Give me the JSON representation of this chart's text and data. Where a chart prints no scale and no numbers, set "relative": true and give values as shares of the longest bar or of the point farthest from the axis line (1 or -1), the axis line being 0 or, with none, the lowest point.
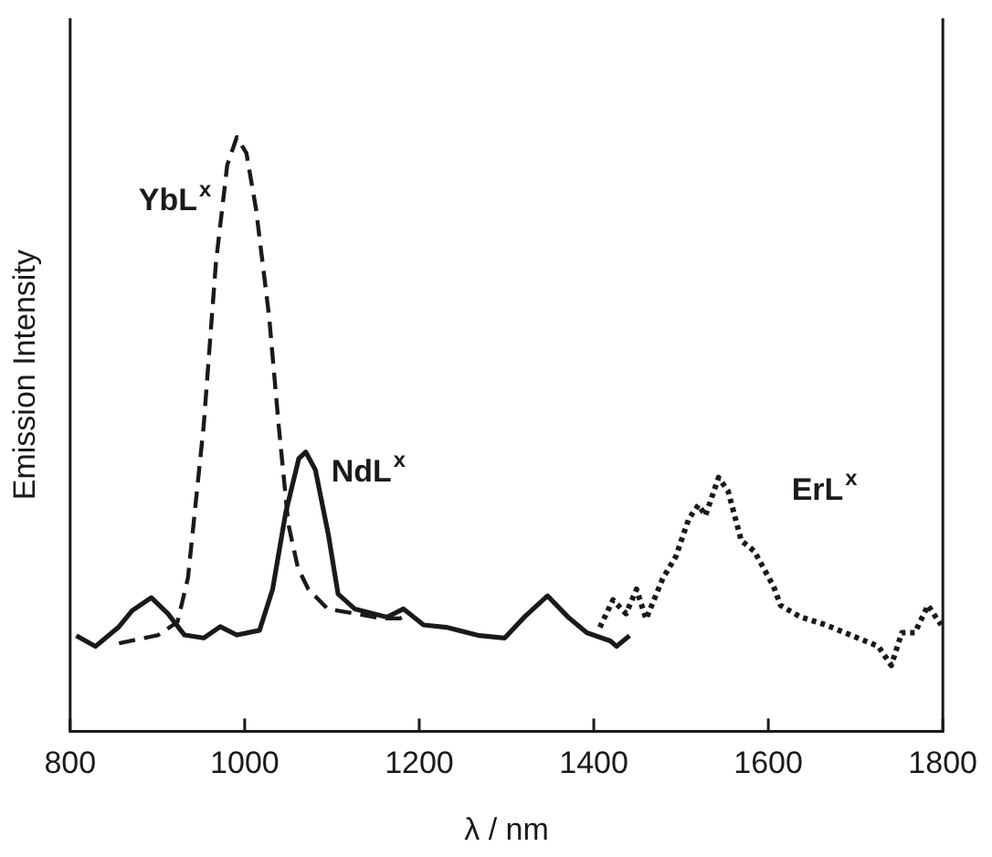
{
  "chart_data": {
    "type": "line",
    "relative": true,
    "xlabel": "λ / nm",
    "ylabel": "Emission Intensity",
    "xlim": [
      800,
      1800
    ],
    "xticks": [
      800,
      1000,
      1200,
      1400,
      1600,
      1800
    ],
    "grid": false,
    "legend": false,
    "marker": "none",
    "series": [
      {
        "name": "YbL$^{x}$",
        "color": "#1a1a1a",
        "line_style": "dashed",
        "x": [
          856,
          901,
          923,
          935,
          953,
          967,
          980,
          991,
          1002,
          1013,
          1028,
          1039,
          1050,
          1061,
          1073,
          1095,
          1127,
          1156,
          1178,
          1190
        ],
        "values": [
          0.148,
          0.162,
          0.184,
          0.258,
          0.514,
          0.788,
          0.953,
          1,
          0.973,
          0.879,
          0.698,
          0.514,
          0.349,
          0.275,
          0.239,
          0.206,
          0.198,
          0.19,
          0.19,
          0.198
        ]
      },
      {
        "name": "NdL$^{x}$",
        "color": "#1a1a1a",
        "line_style": "solid",
        "x": [
          807,
          829,
          856,
          871,
          893,
          912,
          931,
          953,
          972,
          991,
          1017,
          1032,
          1047,
          1062,
          1070,
          1081,
          1096,
          1107,
          1126,
          1163,
          1182,
          1205,
          1231,
          1269,
          1298,
          1321,
          1347,
          1370,
          1392,
          1419,
          1426,
          1441
        ],
        "values": [
          0.161,
          0.143,
          0.176,
          0.203,
          0.225,
          0.198,
          0.162,
          0.157,
          0.176,
          0.162,
          0.17,
          0.239,
          0.368,
          0.459,
          0.47,
          0.44,
          0.33,
          0.231,
          0.206,
          0.192,
          0.206,
          0.179,
          0.175,
          0.161,
          0.157,
          0.193,
          0.228,
          0.193,
          0.166,
          0.152,
          0.143,
          0.161
        ]
      },
      {
        "name": "ErL$^{x}$",
        "color": "#1a1a1a",
        "line_style": "dotted",
        "x": [
          1407,
          1422,
          1437,
          1449,
          1460,
          1479,
          1494,
          1509,
          1520,
          1528,
          1543,
          1554,
          1569,
          1584,
          1606,
          1614,
          1636,
          1666,
          1696,
          1726,
          1741,
          1753,
          1768,
          1783,
          1798
        ],
        "values": [
          0.175,
          0.221,
          0.198,
          0.239,
          0.189,
          0.257,
          0.294,
          0.358,
          0.381,
          0.363,
          0.427,
          0.404,
          0.321,
          0.303,
          0.244,
          0.212,
          0.193,
          0.179,
          0.161,
          0.143,
          0.111,
          0.166,
          0.166,
          0.212,
          0.179
        ]
      }
    ]
  }
}
